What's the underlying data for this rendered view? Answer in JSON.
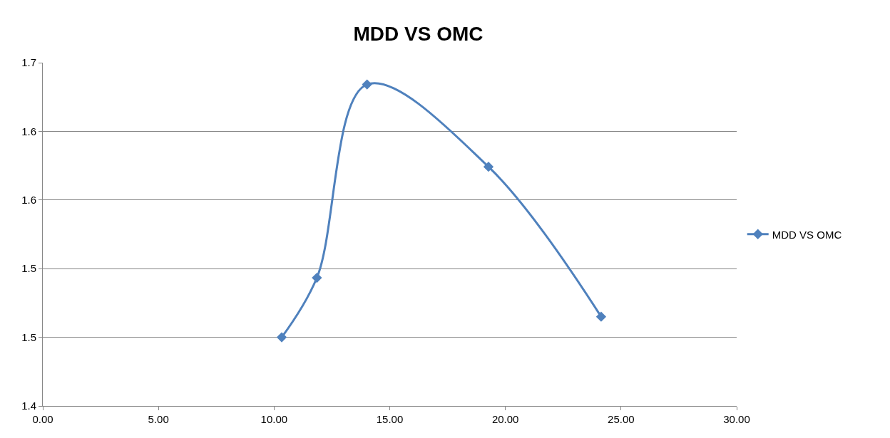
{
  "chart_data": {
    "type": "line",
    "title": "MDD VS OMC",
    "x": [
      10.33,
      11.85,
      14.02,
      19.27,
      24.14
    ],
    "series": [
      {
        "name": "MDD VS OMC",
        "color": "#4f81bd",
        "values": [
          1.46,
          1.512,
          1.681,
          1.609,
          1.478
        ]
      }
    ],
    "xlim": [
      0,
      30
    ],
    "xticks": [
      {
        "value": 0,
        "label": "0.00"
      },
      {
        "value": 5,
        "label": "5.00"
      },
      {
        "value": 10,
        "label": "10.00"
      },
      {
        "value": 15,
        "label": "15.00"
      },
      {
        "value": 20,
        "label": "20.00"
      },
      {
        "value": 25,
        "label": "25.00"
      },
      {
        "value": 30,
        "label": "30.00"
      }
    ],
    "ylim": [
      1.4,
      1.7
    ],
    "yticks": [
      1.4,
      {
        "value": 1.46,
        "label": "1.5"
      },
      {
        "value": 1.52,
        "label": "1.5"
      },
      {
        "value": 1.58,
        "label": "1.6"
      },
      {
        "value": 1.64,
        "label": "1.6"
      },
      1.7
    ],
    "grid": "y",
    "legend": "right",
    "marker": "diamond",
    "line_style": "solid"
  }
}
